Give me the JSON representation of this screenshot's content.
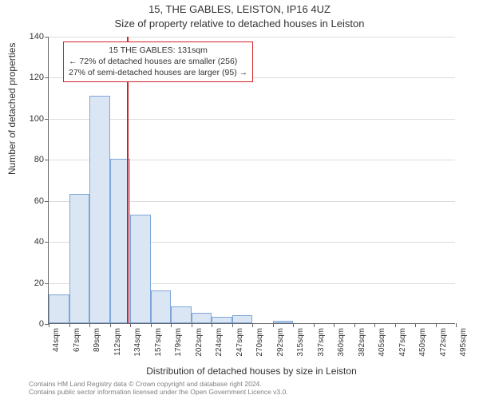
{
  "title": "15, THE GABLES, LEISTON, IP16 4UZ",
  "subtitle": "Size of property relative to detached houses in Leiston",
  "ylabel": "Number of detached properties",
  "xlabel": "Distribution of detached houses by size in Leiston",
  "footer_line1": "Contains HM Land Registry data © Crown copyright and database right 2024.",
  "footer_line2": "Contains public sector information licensed under the Open Government Licence v3.0.",
  "chart": {
    "type": "histogram",
    "ylim": [
      0,
      140
    ],
    "ytick_step": 20,
    "marker_x": 131,
    "bar_fill": "#dbe6f4",
    "bar_border": "#7ea6d9",
    "marker_color": "#d3202a",
    "grid_color": "#dcdcdc",
    "axis_color": "#666666",
    "background": "#ffffff",
    "x_start": 44,
    "x_bin_width": 22.55,
    "xticks": [
      "44sqm",
      "67sqm",
      "89sqm",
      "112sqm",
      "134sqm",
      "157sqm",
      "179sqm",
      "202sqm",
      "224sqm",
      "247sqm",
      "270sqm",
      "292sqm",
      "315sqm",
      "337sqm",
      "360sqm",
      "382sqm",
      "405sqm",
      "427sqm",
      "450sqm",
      "472sqm",
      "495sqm"
    ],
    "values": [
      14,
      63,
      111,
      80,
      53,
      16,
      8,
      5,
      3,
      4,
      0,
      1,
      0,
      0,
      0,
      0,
      0,
      0,
      0,
      0
    ],
    "annotation": {
      "line1": "15 THE GABLES: 131sqm",
      "line2": "← 72% of detached houses are smaller (256)",
      "line3": "27% of semi-detached houses are larger (95) →"
    },
    "title_fontsize": 13,
    "label_fontsize": 12,
    "tick_fontsize": 11
  }
}
